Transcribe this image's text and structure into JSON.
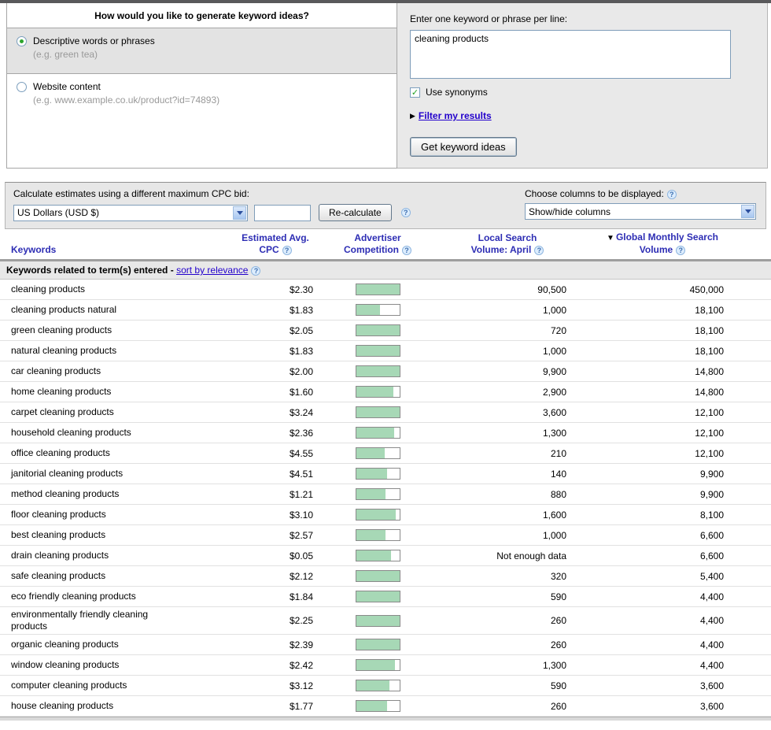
{
  "icons": {
    "help": "?",
    "filter_arrow": "▶",
    "sort_desc": "▼",
    "check": "✓"
  },
  "colors": {
    "header_blue": "#2d2db4",
    "link_blue": "#2200cc",
    "competition_green": "#a7d8b6",
    "panel_gray": "#e9e9e9",
    "toolbar_gray": "#e7e7e7"
  },
  "generator_panel": {
    "title": "How would you like to generate keyword ideas?",
    "options": [
      {
        "label": "Descriptive words or phrases",
        "hint": "(e.g. green tea)",
        "selected": true
      },
      {
        "label": "Website content",
        "hint": "(e.g. www.example.co.uk/product?id=74893)",
        "selected": false
      }
    ]
  },
  "input_panel": {
    "label": "Enter one keyword or phrase per line:",
    "textarea_value": "cleaning products",
    "use_synonyms_label": "Use synonyms",
    "use_synonyms_checked": true,
    "filter_link": "Filter my results",
    "submit_label": "Get keyword ideas"
  },
  "toolbar": {
    "cpc_label": "Calculate estimates using a different maximum CPC bid:",
    "currency_value": "US Dollars (USD $)",
    "bid_value": "",
    "recalculate_label": "Re-calculate",
    "columns_label": "Choose columns to be displayed:",
    "columns_value": "Show/hide columns"
  },
  "table": {
    "headers": {
      "keywords": "Keywords",
      "cpc": "Estimated Avg. CPC",
      "competition": "Advertiser Competition",
      "local": "Local Search Volume: April",
      "global": "Global Monthly Search Volume"
    },
    "section_title": "Keywords related to term(s) entered -",
    "sort_link": "sort by relevance",
    "rows": [
      {
        "keyword": "cleaning products",
        "cpc": "$2.30",
        "competition": 1.0,
        "local_volume": "90,500",
        "global_volume": "450,000"
      },
      {
        "keyword": "cleaning products natural",
        "cpc": "$1.83",
        "competition": 0.55,
        "local_volume": "1,000",
        "global_volume": "18,100"
      },
      {
        "keyword": "green cleaning products",
        "cpc": "$2.05",
        "competition": 1.0,
        "local_volume": "720",
        "global_volume": "18,100"
      },
      {
        "keyword": "natural cleaning products",
        "cpc": "$1.83",
        "competition": 1.0,
        "local_volume": "1,000",
        "global_volume": "18,100"
      },
      {
        "keyword": "car cleaning products",
        "cpc": "$2.00",
        "competition": 1.0,
        "local_volume": "9,900",
        "global_volume": "14,800"
      },
      {
        "keyword": "home cleaning products",
        "cpc": "$1.60",
        "competition": 0.87,
        "local_volume": "2,900",
        "global_volume": "14,800"
      },
      {
        "keyword": "carpet cleaning products",
        "cpc": "$3.24",
        "competition": 1.0,
        "local_volume": "3,600",
        "global_volume": "12,100"
      },
      {
        "keyword": "household cleaning products",
        "cpc": "$2.36",
        "competition": 0.88,
        "local_volume": "1,300",
        "global_volume": "12,100"
      },
      {
        "keyword": "office cleaning products",
        "cpc": "$4.55",
        "competition": 0.66,
        "local_volume": "210",
        "global_volume": "12,100"
      },
      {
        "keyword": "janitorial cleaning products",
        "cpc": "$4.51",
        "competition": 0.72,
        "local_volume": "140",
        "global_volume": "9,900"
      },
      {
        "keyword": "method cleaning products",
        "cpc": "$1.21",
        "competition": 0.68,
        "local_volume": "880",
        "global_volume": "9,900"
      },
      {
        "keyword": "floor cleaning products",
        "cpc": "$3.10",
        "competition": 0.92,
        "local_volume": "1,600",
        "global_volume": "8,100"
      },
      {
        "keyword": "best cleaning products",
        "cpc": "$2.57",
        "competition": 0.68,
        "local_volume": "1,000",
        "global_volume": "6,600"
      },
      {
        "keyword": "drain cleaning products",
        "cpc": "$0.05",
        "competition": 0.8,
        "local_volume": "Not enough data",
        "global_volume": "6,600"
      },
      {
        "keyword": "safe cleaning products",
        "cpc": "$2.12",
        "competition": 1.0,
        "local_volume": "320",
        "global_volume": "5,400"
      },
      {
        "keyword": "eco friendly cleaning products",
        "cpc": "$1.84",
        "competition": 1.0,
        "local_volume": "590",
        "global_volume": "4,400"
      },
      {
        "keyword": "environmentally friendly cleaning products",
        "cpc": "$2.25",
        "competition": 1.0,
        "local_volume": "260",
        "global_volume": "4,400"
      },
      {
        "keyword": "organic cleaning products",
        "cpc": "$2.39",
        "competition": 1.0,
        "local_volume": "260",
        "global_volume": "4,400"
      },
      {
        "keyword": "window cleaning products",
        "cpc": "$2.42",
        "competition": 0.9,
        "local_volume": "1,300",
        "global_volume": "4,400"
      },
      {
        "keyword": "computer cleaning products",
        "cpc": "$3.12",
        "competition": 0.78,
        "local_volume": "590",
        "global_volume": "3,600"
      },
      {
        "keyword": "house cleaning products",
        "cpc": "$1.77",
        "competition": 0.72,
        "local_volume": "260",
        "global_volume": "3,600"
      }
    ]
  }
}
